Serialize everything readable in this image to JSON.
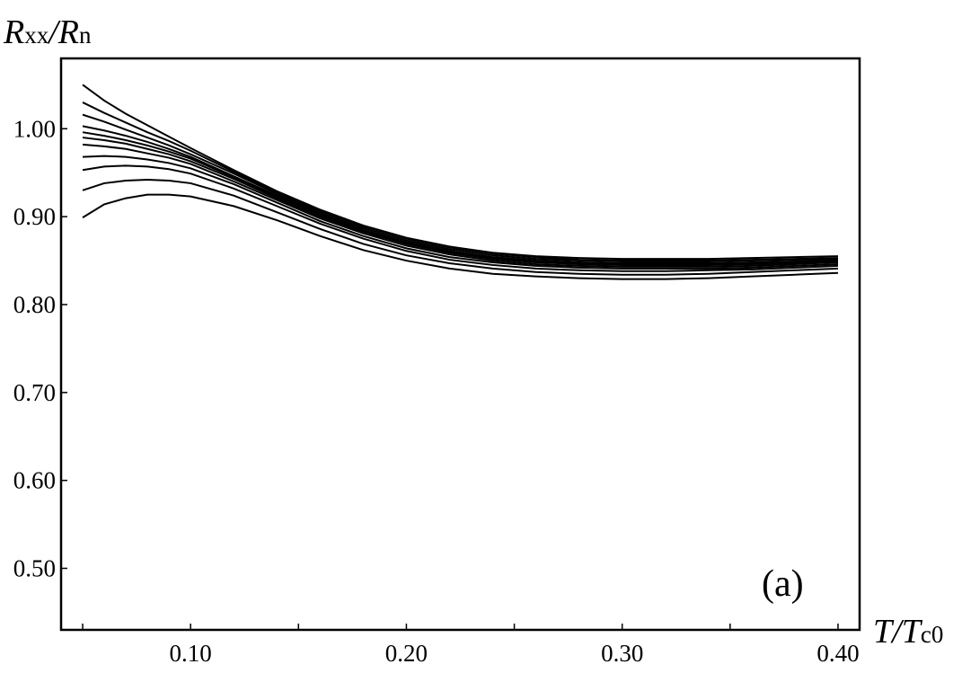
{
  "chart_data": {
    "type": "line",
    "ylabel": {
      "main": "R",
      "sub": "xx",
      "sep": "/",
      "main2": "R",
      "sub2": "n"
    },
    "xlabel": {
      "main": "T",
      "sep": "/",
      "main2": "T",
      "sub2": "c0"
    },
    "annotation": "(a)",
    "xlim": [
      0.04,
      0.41
    ],
    "ylim": [
      0.43,
      1.08
    ],
    "x_ticks": [
      0.05,
      0.1,
      0.15,
      0.2,
      0.25,
      0.3,
      0.35,
      0.4
    ],
    "x_tick_labels": [
      {
        "value": 0.1,
        "label": "0.10"
      },
      {
        "value": 0.2,
        "label": "0.20"
      },
      {
        "value": 0.3,
        "label": "0.30"
      },
      {
        "value": 0.4,
        "label": "0.40"
      }
    ],
    "y_ticks": [
      0.5,
      0.6,
      0.7,
      0.8,
      0.9,
      1.0
    ],
    "y_tick_labels": [
      {
        "value": 1.0,
        "label": "1.00"
      },
      {
        "value": 0.9,
        "label": "0.90"
      },
      {
        "value": 0.8,
        "label": "0.80"
      },
      {
        "value": 0.7,
        "label": "0.70"
      },
      {
        "value": 0.6,
        "label": "0.60"
      },
      {
        "value": 0.5,
        "label": "0.50"
      }
    ],
    "grid": false,
    "x": [
      0.05,
      0.06,
      0.07,
      0.08,
      0.09,
      0.1,
      0.12,
      0.14,
      0.16,
      0.18,
      0.2,
      0.22,
      0.24,
      0.26,
      0.28,
      0.3,
      0.32,
      0.34,
      0.36,
      0.38,
      0.4
    ],
    "series": [
      {
        "values": [
          1.05,
          1.032,
          1.017,
          1.004,
          0.991,
          0.978,
          0.953,
          0.929,
          0.908,
          0.89,
          0.876,
          0.866,
          0.859,
          0.855,
          0.853,
          0.852,
          0.852,
          0.852,
          0.853,
          0.854,
          0.855
        ]
      },
      {
        "values": [
          1.03,
          1.018,
          1.007,
          0.996,
          0.986,
          0.975,
          0.951,
          0.928,
          0.907,
          0.889,
          0.875,
          0.865,
          0.858,
          0.854,
          0.851,
          0.85,
          0.85,
          0.85,
          0.851,
          0.852,
          0.853
        ]
      },
      {
        "values": [
          1.016,
          1.008,
          0.999,
          0.99,
          0.981,
          0.971,
          0.949,
          0.926,
          0.905,
          0.887,
          0.873,
          0.863,
          0.856,
          0.852,
          0.85,
          0.849,
          0.849,
          0.849,
          0.85,
          0.851,
          0.852
        ]
      },
      {
        "values": [
          1.003,
          0.998,
          0.992,
          0.985,
          0.977,
          0.968,
          0.946,
          0.924,
          0.903,
          0.885,
          0.871,
          0.861,
          0.854,
          0.85,
          0.848,
          0.847,
          0.847,
          0.847,
          0.848,
          0.849,
          0.851
        ]
      },
      {
        "values": [
          0.996,
          0.992,
          0.987,
          0.981,
          0.974,
          0.966,
          0.945,
          0.923,
          0.902,
          0.884,
          0.87,
          0.86,
          0.853,
          0.849,
          0.847,
          0.846,
          0.846,
          0.846,
          0.847,
          0.848,
          0.85
        ]
      },
      {
        "values": [
          0.99,
          0.987,
          0.983,
          0.977,
          0.971,
          0.963,
          0.943,
          0.921,
          0.9,
          0.883,
          0.869,
          0.859,
          0.852,
          0.848,
          0.846,
          0.845,
          0.845,
          0.845,
          0.846,
          0.847,
          0.849
        ]
      },
      {
        "values": [
          0.982,
          0.98,
          0.977,
          0.972,
          0.967,
          0.96,
          0.94,
          0.919,
          0.898,
          0.881,
          0.867,
          0.857,
          0.85,
          0.846,
          0.844,
          0.843,
          0.843,
          0.843,
          0.844,
          0.846,
          0.848
        ]
      },
      {
        "values": [
          0.968,
          0.969,
          0.968,
          0.965,
          0.961,
          0.955,
          0.937,
          0.916,
          0.895,
          0.878,
          0.864,
          0.854,
          0.848,
          0.844,
          0.842,
          0.841,
          0.841,
          0.841,
          0.842,
          0.844,
          0.846
        ]
      },
      {
        "values": [
          0.953,
          0.957,
          0.958,
          0.957,
          0.954,
          0.949,
          0.932,
          0.912,
          0.892,
          0.875,
          0.861,
          0.851,
          0.845,
          0.841,
          0.839,
          0.838,
          0.838,
          0.839,
          0.84,
          0.842,
          0.844
        ]
      },
      {
        "values": [
          0.93,
          0.938,
          0.941,
          0.942,
          0.941,
          0.938,
          0.924,
          0.905,
          0.886,
          0.869,
          0.856,
          0.847,
          0.841,
          0.837,
          0.835,
          0.834,
          0.834,
          0.835,
          0.837,
          0.839,
          0.841
        ]
      },
      {
        "values": [
          0.899,
          0.914,
          0.921,
          0.925,
          0.925,
          0.923,
          0.912,
          0.896,
          0.878,
          0.862,
          0.85,
          0.841,
          0.835,
          0.832,
          0.83,
          0.829,
          0.829,
          0.83,
          0.832,
          0.834,
          0.836
        ]
      }
    ]
  }
}
